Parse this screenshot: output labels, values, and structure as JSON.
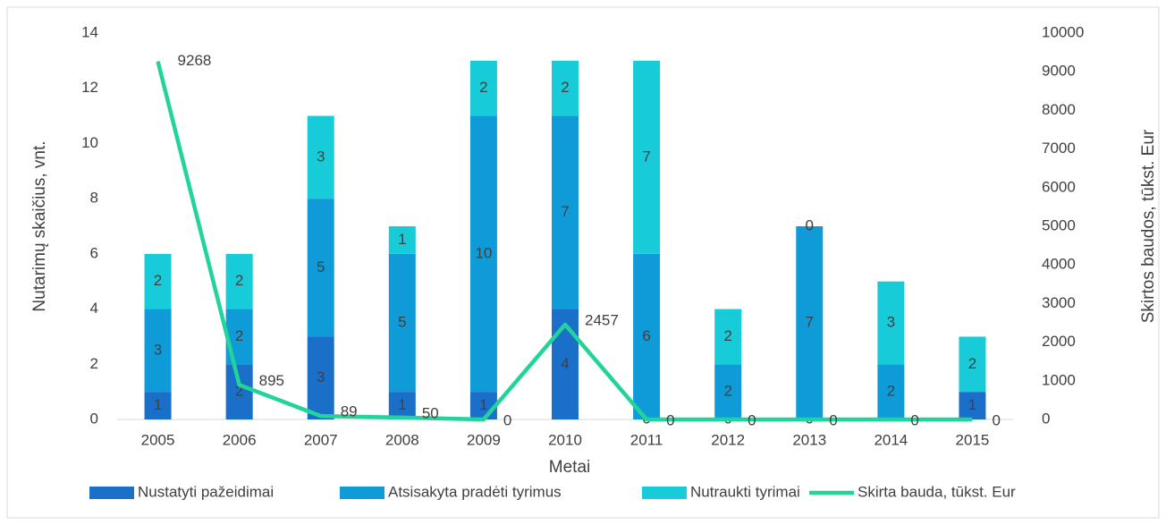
{
  "chart_data": {
    "type": "bar",
    "categories": [
      "2005",
      "2006",
      "2007",
      "2008",
      "2009",
      "2010",
      "2011",
      "2012",
      "2013",
      "2014",
      "2015"
    ],
    "x_label": "Metai",
    "y_label": "Nutarimų skaičius, vnt.",
    "y2_label": "Skirtos baudos, tūkst. Eur",
    "stacked": true,
    "series": [
      {
        "name": "Nustatyti pažeidimai",
        "color": "#1a6fc9",
        "values": [
          1,
          2,
          3,
          1,
          1,
          4,
          0,
          0,
          0,
          null,
          1
        ]
      },
      {
        "name": "Atsisakyta pradėti tyrimus",
        "color": "#0f9bd8",
        "values": [
          3,
          2,
          5,
          5,
          10,
          7,
          6,
          2,
          7,
          2,
          null
        ]
      },
      {
        "name": "Nutraukti tyrimai",
        "color": "#17cbd9",
        "values": [
          2,
          2,
          3,
          1,
          2,
          2,
          7,
          2,
          0,
          3,
          2
        ]
      },
      {
        "name": "Skirta bauda, tūkst. Eur",
        "color": "#22d39b",
        "type": "line",
        "axis": "y2",
        "values": [
          9268,
          895,
          89,
          50,
          0,
          2457,
          0,
          0,
          0,
          0,
          0
        ]
      }
    ],
    "ylim": [
      0,
      14
    ],
    "yticks": [
      0,
      2,
      4,
      6,
      8,
      10,
      12,
      14
    ],
    "y2lim": [
      0,
      10000
    ],
    "y2ticks": [
      0,
      1000,
      2000,
      3000,
      4000,
      5000,
      6000,
      7000,
      8000,
      9000,
      10000
    ],
    "legend": "bottom"
  }
}
